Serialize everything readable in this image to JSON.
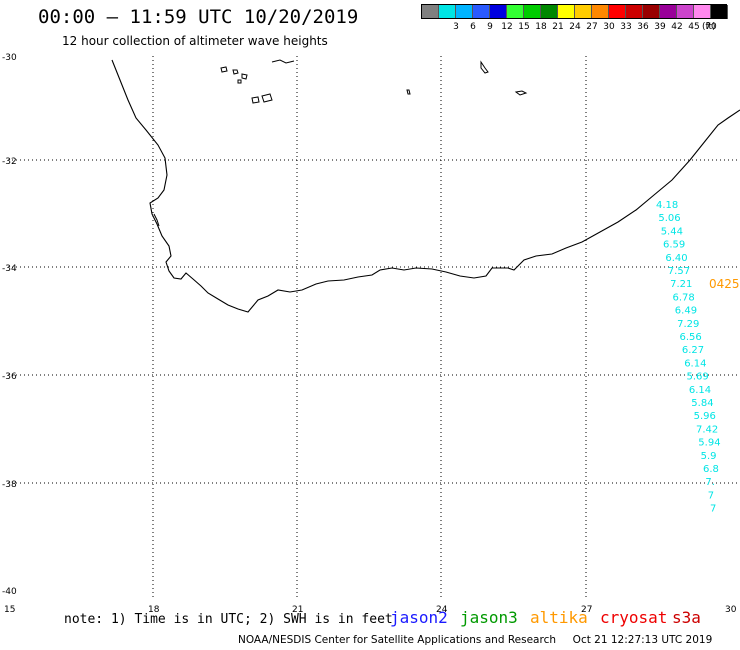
{
  "header": {
    "title": "00:00 – 11:59 UTC 10/20/2019",
    "subtitle": "12 hour collection of altimeter wave heights"
  },
  "legend": {
    "unit": "(ft)",
    "bins": [
      {
        "label": "",
        "color": "#808080"
      },
      {
        "label": "3",
        "color": "#00e5e5"
      },
      {
        "label": "6",
        "color": "#00b4ff"
      },
      {
        "label": "9",
        "color": "#2a5aff"
      },
      {
        "label": "12",
        "color": "#0000e0"
      },
      {
        "label": "15",
        "color": "#33ff33"
      },
      {
        "label": "18",
        "color": "#00cc00"
      },
      {
        "label": "21",
        "color": "#008800"
      },
      {
        "label": "24",
        "color": "#ffff00"
      },
      {
        "label": "27",
        "color": "#ffcc00"
      },
      {
        "label": "30",
        "color": "#ff8800"
      },
      {
        "label": "33",
        "color": "#ff0000"
      },
      {
        "label": "36",
        "color": "#cc0000"
      },
      {
        "label": "39",
        "color": "#990000"
      },
      {
        "label": "42",
        "color": "#990099"
      },
      {
        "label": "45",
        "color": "#cc44cc"
      },
      {
        "label": "70",
        "color": "#ff88ee"
      },
      {
        "label": "",
        "color": "#000000"
      }
    ]
  },
  "axes": {
    "lat_labels": [
      "-30",
      "-32",
      "-34",
      "-36",
      "-38",
      "-40"
    ],
    "lon_labels": [
      "15",
      "18",
      "21",
      "24",
      "27",
      "30"
    ]
  },
  "track": {
    "color": "#00e5e5",
    "values": [
      "4.18",
      "5.06",
      "5.44",
      "6.59",
      "6.40",
      "7.57",
      "7.21",
      "6.78",
      "6.49",
      "7.29",
      "6.56",
      "6.27",
      "6.14",
      "5.69",
      "6.14",
      "5.84",
      "5.96",
      "7.42",
      "5.94",
      "5.9",
      "6.8",
      "7.",
      "7",
      "7"
    ]
  },
  "time_label": {
    "text": "0425",
    "color": "#ff9900"
  },
  "footer": {
    "note": "note: 1) Time is in UTC; 2) SWH is in feet",
    "satellites": [
      {
        "name": "jason2",
        "color": "#1a1aff"
      },
      {
        "name": "jason3",
        "color": "#009900"
      },
      {
        "name": "altika",
        "color": "#ff9900"
      },
      {
        "name": "cryosat",
        "color": "#ee0000"
      },
      {
        "name": "s3a",
        "color": "#cc0000"
      }
    ],
    "credit": "NOAA/NESDIS Center for Satellite Applications and Research     Oct 21 12:27:13 UTC 2019"
  }
}
